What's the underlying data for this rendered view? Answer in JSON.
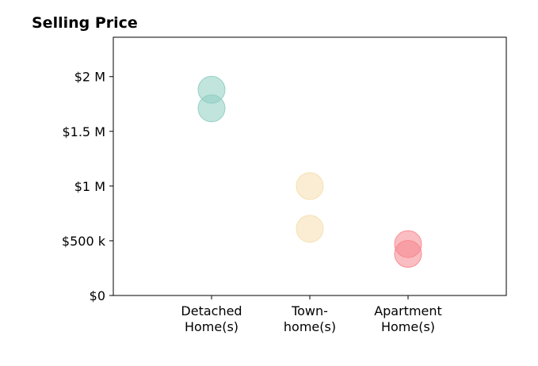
{
  "chart_data": {
    "type": "scatter",
    "title": "Selling Price",
    "xlabel": "",
    "ylabel": "",
    "categories": [
      [
        "Detached",
        "Home(s)"
      ],
      [
        "Town-",
        "home(s)"
      ],
      [
        "Apartment",
        "Home(s)"
      ]
    ],
    "yticks": [
      {
        "value": 0,
        "label": "$0"
      },
      {
        "value": 500000,
        "label": "$500 k"
      },
      {
        "value": 1000000,
        "label": "$1 M"
      },
      {
        "value": 1500000,
        "label": "$1.5 M"
      },
      {
        "value": 2000000,
        "label": "$2 M"
      }
    ],
    "ylim": [
      0,
      2360000
    ],
    "xlim": [
      0,
      4
    ],
    "grid": false,
    "points": [
      {
        "category": 0,
        "value": 1880000,
        "color": "#8ecdc1"
      },
      {
        "category": 0,
        "value": 1710000,
        "color": "#8ecdc1"
      },
      {
        "category": 1,
        "value": 1000000,
        "color": "#f5dfae"
      },
      {
        "category": 1,
        "value": 610000,
        "color": "#f5dfae"
      },
      {
        "category": 2,
        "value": 470000,
        "color": "#f5868e"
      },
      {
        "category": 2,
        "value": 380000,
        "color": "#f5868e"
      }
    ]
  }
}
